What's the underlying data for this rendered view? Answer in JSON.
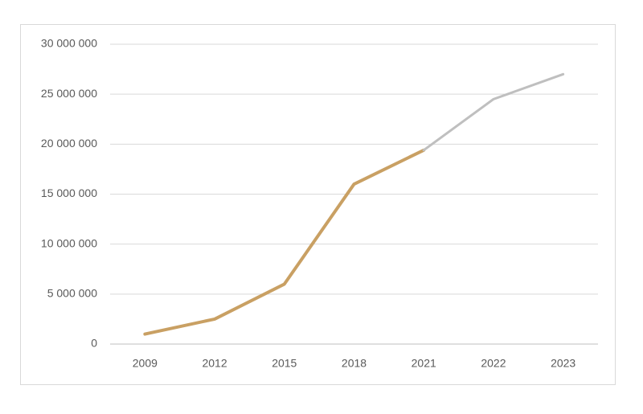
{
  "chart_data": {
    "type": "line",
    "categories": [
      "2009",
      "2012",
      "2015",
      "2018",
      "2021",
      "2022",
      "2023"
    ],
    "series": [
      {
        "color": "#c9a063",
        "values": [
          1000000,
          2500000,
          6000000,
          16000000,
          19400000,
          null,
          null
        ]
      },
      {
        "color": "#bfbfbf",
        "values": [
          null,
          null,
          null,
          null,
          19400000,
          24500000,
          27000000
        ]
      }
    ],
    "ylim": [
      0,
      30000000
    ],
    "yticks": [
      0,
      {
        "value": 5000000,
        "label": "5 000 000"
      },
      {
        "value": 10000000,
        "label": "10 000 000"
      },
      {
        "value": 15000000,
        "label": "15 000 000"
      },
      {
        "value": 20000000,
        "label": "20 000 000"
      },
      {
        "value": 25000000,
        "label": "25 000 000"
      },
      {
        "value": 30000000,
        "label": "30 000 000"
      }
    ],
    "grid": true
  }
}
